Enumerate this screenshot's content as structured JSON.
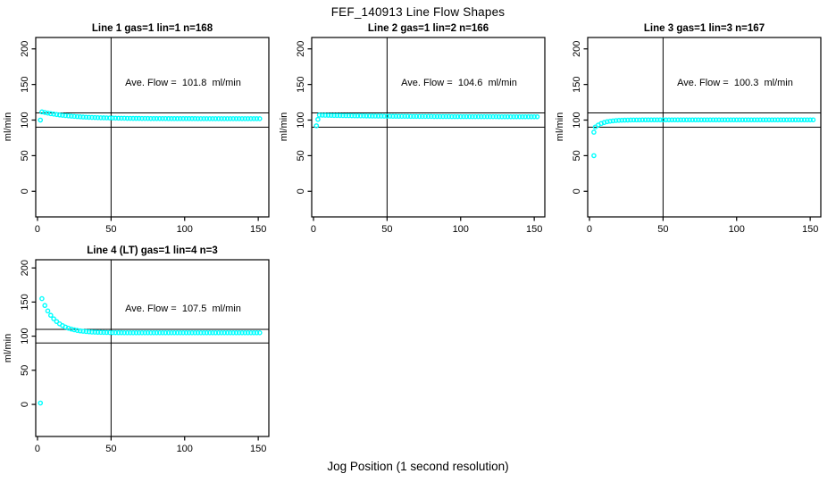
{
  "page": {
    "title": "FEF_140913  Line Flow Shapes",
    "xlabel": "Jog Position (1 second resolution)"
  },
  "colors": {
    "data": "#00FFFF",
    "axis": "#000000",
    "background": "#FFFFFF"
  },
  "chart_data": [
    {
      "type": "scatter",
      "title": "Line 1 gas=1 lin=1 n=168",
      "annotation": "Ave. Flow =  101.8  ml/min",
      "ave_flow_ml_min": 101.8,
      "n": 168,
      "ylabel": "ml/min",
      "xticks": [
        0,
        50,
        100,
        150
      ],
      "yticks": [
        0,
        50,
        100,
        150,
        200
      ],
      "xlim": [
        -1.2,
        157.2
      ],
      "ylim": [
        -36,
        216
      ],
      "vline_x": 50,
      "hlines_y": [
        90,
        110
      ],
      "points": [
        [
          2,
          100
        ],
        [
          3,
          111.5
        ],
        [
          5,
          110.6
        ],
        [
          7,
          109.8
        ],
        [
          9,
          109.0
        ],
        [
          11,
          108.4
        ],
        [
          13,
          107.8
        ],
        [
          15,
          107.2
        ],
        [
          17,
          106.7
        ],
        [
          19,
          106.3
        ],
        [
          21,
          105.9
        ],
        [
          23,
          105.5
        ],
        [
          25,
          105.2
        ],
        [
          27,
          104.9
        ],
        [
          29,
          104.6
        ],
        [
          31,
          104.3
        ],
        [
          33,
          104.1
        ],
        [
          35,
          103.9
        ],
        [
          37,
          103.7
        ],
        [
          39,
          103.6
        ],
        [
          41,
          103.4
        ],
        [
          43,
          103.3
        ],
        [
          45,
          103.2
        ],
        [
          47,
          103.1
        ],
        [
          49,
          103.0
        ],
        [
          51,
          102.9
        ],
        [
          53,
          102.8
        ],
        [
          55,
          102.7
        ],
        [
          57,
          102.6
        ],
        [
          59,
          102.6
        ],
        [
          61,
          102.5
        ],
        [
          63,
          102.5
        ],
        [
          65,
          102.4
        ],
        [
          67,
          102.4
        ],
        [
          69,
          102.4
        ],
        [
          71,
          102.3
        ],
        [
          73,
          102.3
        ],
        [
          75,
          102.3
        ],
        [
          77,
          102.2
        ],
        [
          79,
          102.2
        ],
        [
          81,
          102.2
        ],
        [
          83,
          102.2
        ],
        [
          85,
          102.2
        ],
        [
          87,
          102.2
        ],
        [
          89,
          102.1
        ],
        [
          91,
          102.1
        ],
        [
          93,
          102.1
        ],
        [
          95,
          102.1
        ],
        [
          97,
          102.1
        ],
        [
          99,
          102.1
        ],
        [
          101,
          102.1
        ],
        [
          103,
          102.1
        ],
        [
          105,
          102.1
        ],
        [
          107,
          102.1
        ],
        [
          109,
          102.0
        ],
        [
          111,
          102.0
        ],
        [
          113,
          102.0
        ],
        [
          115,
          102.0
        ],
        [
          117,
          102.0
        ],
        [
          119,
          102.0
        ],
        [
          121,
          102.0
        ],
        [
          123,
          102.0
        ],
        [
          125,
          102.0
        ],
        [
          127,
          102.0
        ],
        [
          129,
          102.0
        ],
        [
          131,
          102.0
        ],
        [
          133,
          102.0
        ],
        [
          135,
          102.0
        ],
        [
          137,
          102.0
        ],
        [
          139,
          102.0
        ],
        [
          141,
          102.0
        ],
        [
          143,
          102.0
        ],
        [
          145,
          102.0
        ],
        [
          147,
          102.0
        ],
        [
          149,
          102.0
        ],
        [
          151,
          102.0
        ]
      ]
    },
    {
      "type": "scatter",
      "title": "Line 2 gas=1 lin=2 n=166",
      "annotation": "Ave. Flow =  104.6  ml/min",
      "ave_flow_ml_min": 104.6,
      "n": 166,
      "ylabel": "ml/min",
      "xticks": [
        0,
        50,
        100,
        150
      ],
      "yticks": [
        0,
        50,
        100,
        150,
        200
      ],
      "xlim": [
        -1.2,
        157.2
      ],
      "ylim": [
        -36,
        216
      ],
      "vline_x": 50,
      "hlines_y": [
        90,
        110
      ],
      "points": [
        [
          2,
          92
        ],
        [
          3,
          101
        ],
        [
          4,
          107.0
        ],
        [
          6,
          106.9
        ],
        [
          8,
          106.8
        ],
        [
          10,
          106.7
        ],
        [
          12,
          106.6
        ],
        [
          14,
          106.5
        ],
        [
          16,
          106.5
        ],
        [
          18,
          106.4
        ],
        [
          20,
          106.3
        ],
        [
          22,
          106.2
        ],
        [
          24,
          106.2
        ],
        [
          26,
          106.1
        ],
        [
          28,
          106.0
        ],
        [
          30,
          106.0
        ],
        [
          32,
          105.9
        ],
        [
          34,
          105.9
        ],
        [
          36,
          105.8
        ],
        [
          38,
          105.8
        ],
        [
          40,
          105.7
        ],
        [
          42,
          105.7
        ],
        [
          44,
          105.6
        ],
        [
          46,
          105.6
        ],
        [
          48,
          105.5
        ],
        [
          50,
          105.5
        ],
        [
          52,
          105.5
        ],
        [
          54,
          105.4
        ],
        [
          56,
          105.4
        ],
        [
          58,
          105.3
        ],
        [
          60,
          105.3
        ],
        [
          62,
          105.3
        ],
        [
          64,
          105.3
        ],
        [
          66,
          105.2
        ],
        [
          68,
          105.2
        ],
        [
          70,
          105.2
        ],
        [
          72,
          105.1
        ],
        [
          74,
          105.1
        ],
        [
          76,
          105.1
        ],
        [
          78,
          105.1
        ],
        [
          80,
          105.1
        ],
        [
          82,
          105.0
        ],
        [
          84,
          105.0
        ],
        [
          86,
          105.0
        ],
        [
          88,
          105.0
        ],
        [
          90,
          105.0
        ],
        [
          92,
          105.0
        ],
        [
          94,
          104.9
        ],
        [
          96,
          104.9
        ],
        [
          98,
          104.9
        ],
        [
          100,
          104.9
        ],
        [
          102,
          104.9
        ],
        [
          104,
          104.9
        ],
        [
          106,
          104.9
        ],
        [
          108,
          104.8
        ],
        [
          110,
          104.8
        ],
        [
          112,
          104.8
        ],
        [
          114,
          104.8
        ],
        [
          116,
          104.8
        ],
        [
          118,
          104.8
        ],
        [
          120,
          104.8
        ],
        [
          122,
          104.8
        ],
        [
          124,
          104.8
        ],
        [
          126,
          104.7
        ],
        [
          128,
          104.7
        ],
        [
          130,
          104.7
        ],
        [
          132,
          104.7
        ],
        [
          134,
          104.7
        ],
        [
          136,
          104.7
        ],
        [
          138,
          104.7
        ],
        [
          140,
          104.7
        ],
        [
          142,
          104.7
        ],
        [
          144,
          104.7
        ],
        [
          146,
          104.7
        ],
        [
          148,
          104.7
        ],
        [
          150,
          104.7
        ],
        [
          152,
          104.7
        ]
      ]
    },
    {
      "type": "scatter",
      "title": "Line 3 gas=1 lin=3 n=167",
      "annotation": "Ave. Flow =  100.3  ml/min",
      "ave_flow_ml_min": 100.3,
      "n": 167,
      "ylabel": "ml/min",
      "xticks": [
        0,
        50,
        100,
        150
      ],
      "yticks": [
        0,
        50,
        100,
        150,
        200
      ],
      "xlim": [
        -1.2,
        157.2
      ],
      "ylim": [
        -36,
        216
      ],
      "vline_x": 50,
      "hlines_y": [
        90,
        110
      ],
      "points": [
        [
          3,
          83
        ],
        [
          3,
          50
        ],
        [
          4,
          90.3
        ],
        [
          6,
          93.1
        ],
        [
          8,
          95.2
        ],
        [
          10,
          96.6
        ],
        [
          12,
          97.7
        ],
        [
          14,
          98.4
        ],
        [
          16,
          98.9
        ],
        [
          18,
          99.3
        ],
        [
          20,
          99.6
        ],
        [
          22,
          99.8
        ],
        [
          24,
          99.9
        ],
        [
          26,
          100.0
        ],
        [
          28,
          100.1
        ],
        [
          30,
          100.2
        ],
        [
          32,
          100.2
        ],
        [
          34,
          100.2
        ],
        [
          36,
          100.3
        ],
        [
          38,
          100.3
        ],
        [
          40,
          100.3
        ],
        [
          42,
          100.3
        ],
        [
          44,
          100.3
        ],
        [
          46,
          100.3
        ],
        [
          48,
          100.3
        ],
        [
          50,
          100.3
        ],
        [
          52,
          100.3
        ],
        [
          54,
          100.3
        ],
        [
          56,
          100.3
        ],
        [
          58,
          100.3
        ],
        [
          60,
          100.3
        ],
        [
          62,
          100.3
        ],
        [
          64,
          100.3
        ],
        [
          66,
          100.3
        ],
        [
          68,
          100.3
        ],
        [
          70,
          100.3
        ],
        [
          72,
          100.3
        ],
        [
          74,
          100.3
        ],
        [
          76,
          100.3
        ],
        [
          78,
          100.3
        ],
        [
          80,
          100.3
        ],
        [
          82,
          100.3
        ],
        [
          84,
          100.3
        ],
        [
          86,
          100.3
        ],
        [
          88,
          100.3
        ],
        [
          90,
          100.3
        ],
        [
          92,
          100.3
        ],
        [
          94,
          100.3
        ],
        [
          96,
          100.3
        ],
        [
          98,
          100.3
        ],
        [
          100,
          100.3
        ],
        [
          102,
          100.3
        ],
        [
          104,
          100.3
        ],
        [
          106,
          100.3
        ],
        [
          108,
          100.3
        ],
        [
          110,
          100.3
        ],
        [
          112,
          100.3
        ],
        [
          114,
          100.3
        ],
        [
          116,
          100.3
        ],
        [
          118,
          100.3
        ],
        [
          120,
          100.3
        ],
        [
          122,
          100.3
        ],
        [
          124,
          100.3
        ],
        [
          126,
          100.3
        ],
        [
          128,
          100.3
        ],
        [
          130,
          100.3
        ],
        [
          132,
          100.3
        ],
        [
          134,
          100.3
        ],
        [
          136,
          100.3
        ],
        [
          138,
          100.3
        ],
        [
          140,
          100.3
        ],
        [
          142,
          100.3
        ],
        [
          144,
          100.3
        ],
        [
          146,
          100.3
        ],
        [
          148,
          100.3
        ],
        [
          150,
          100.3
        ],
        [
          152,
          100.3
        ]
      ]
    },
    {
      "type": "scatter",
      "title": "Line 4 (LT) gas=1 lin=4 n=3",
      "annotation": "Ave. Flow =  107.5  ml/min",
      "ave_flow_ml_min": 107.5,
      "n": 3,
      "ylabel": "ml/min",
      "xticks": [
        0,
        50,
        100,
        150
      ],
      "yticks": [
        0,
        50,
        100,
        150,
        200
      ],
      "xlim": [
        -1.2,
        157.2
      ],
      "ylim": [
        -47,
        212
      ],
      "vline_x": 50,
      "hlines_y": [
        90,
        110
      ],
      "points": [
        [
          2,
          2
        ],
        [
          3,
          155.0
        ],
        [
          5,
          145.0
        ],
        [
          7,
          137.0
        ],
        [
          9,
          130.6
        ],
        [
          11,
          125.5
        ],
        [
          13,
          121.4
        ],
        [
          15,
          118.1
        ],
        [
          17,
          115.5
        ],
        [
          19,
          113.4
        ],
        [
          21,
          111.7
        ],
        [
          23,
          110.4
        ],
        [
          25,
          109.3
        ],
        [
          27,
          108.4
        ],
        [
          29,
          107.7
        ],
        [
          31,
          107.2
        ],
        [
          33,
          106.8
        ],
        [
          35,
          106.4
        ],
        [
          37,
          106.1
        ],
        [
          39,
          105.9
        ],
        [
          41,
          105.7
        ],
        [
          43,
          105.6
        ],
        [
          45,
          105.5
        ],
        [
          47,
          105.4
        ],
        [
          49,
          105.3
        ],
        [
          51,
          105.2
        ],
        [
          53,
          105.2
        ],
        [
          55,
          105.1
        ],
        [
          57,
          105.1
        ],
        [
          59,
          105.0
        ],
        [
          61,
          105.0
        ],
        [
          63,
          105.0
        ],
        [
          65,
          105.0
        ],
        [
          67,
          105.0
        ],
        [
          69,
          105.0
        ],
        [
          71,
          105.0
        ],
        [
          73,
          105.0
        ],
        [
          75,
          105.0
        ],
        [
          77,
          105.0
        ],
        [
          79,
          105.0
        ],
        [
          81,
          105.0
        ],
        [
          83,
          105.0
        ],
        [
          85,
          105.0
        ],
        [
          87,
          105.0
        ],
        [
          89,
          105.0
        ],
        [
          91,
          105.0
        ],
        [
          93,
          105.0
        ],
        [
          95,
          105.0
        ],
        [
          97,
          105.0
        ],
        [
          99,
          105.0
        ],
        [
          101,
          105.0
        ],
        [
          103,
          105.0
        ],
        [
          105,
          105.0
        ],
        [
          107,
          105.0
        ],
        [
          109,
          105.0
        ],
        [
          111,
          105.0
        ],
        [
          113,
          105.0
        ],
        [
          115,
          105.0
        ],
        [
          117,
          105.0
        ],
        [
          119,
          105.0
        ],
        [
          121,
          105.0
        ],
        [
          123,
          105.0
        ],
        [
          125,
          105.0
        ],
        [
          127,
          105.0
        ],
        [
          129,
          105.0
        ],
        [
          131,
          105.0
        ],
        [
          133,
          105.0
        ],
        [
          135,
          105.0
        ],
        [
          137,
          105.0
        ],
        [
          139,
          105.0
        ],
        [
          141,
          105.0
        ],
        [
          143,
          105.0
        ],
        [
          145,
          105.0
        ],
        [
          147,
          105.0
        ],
        [
          149,
          105.0
        ],
        [
          151,
          105.0
        ]
      ]
    }
  ]
}
